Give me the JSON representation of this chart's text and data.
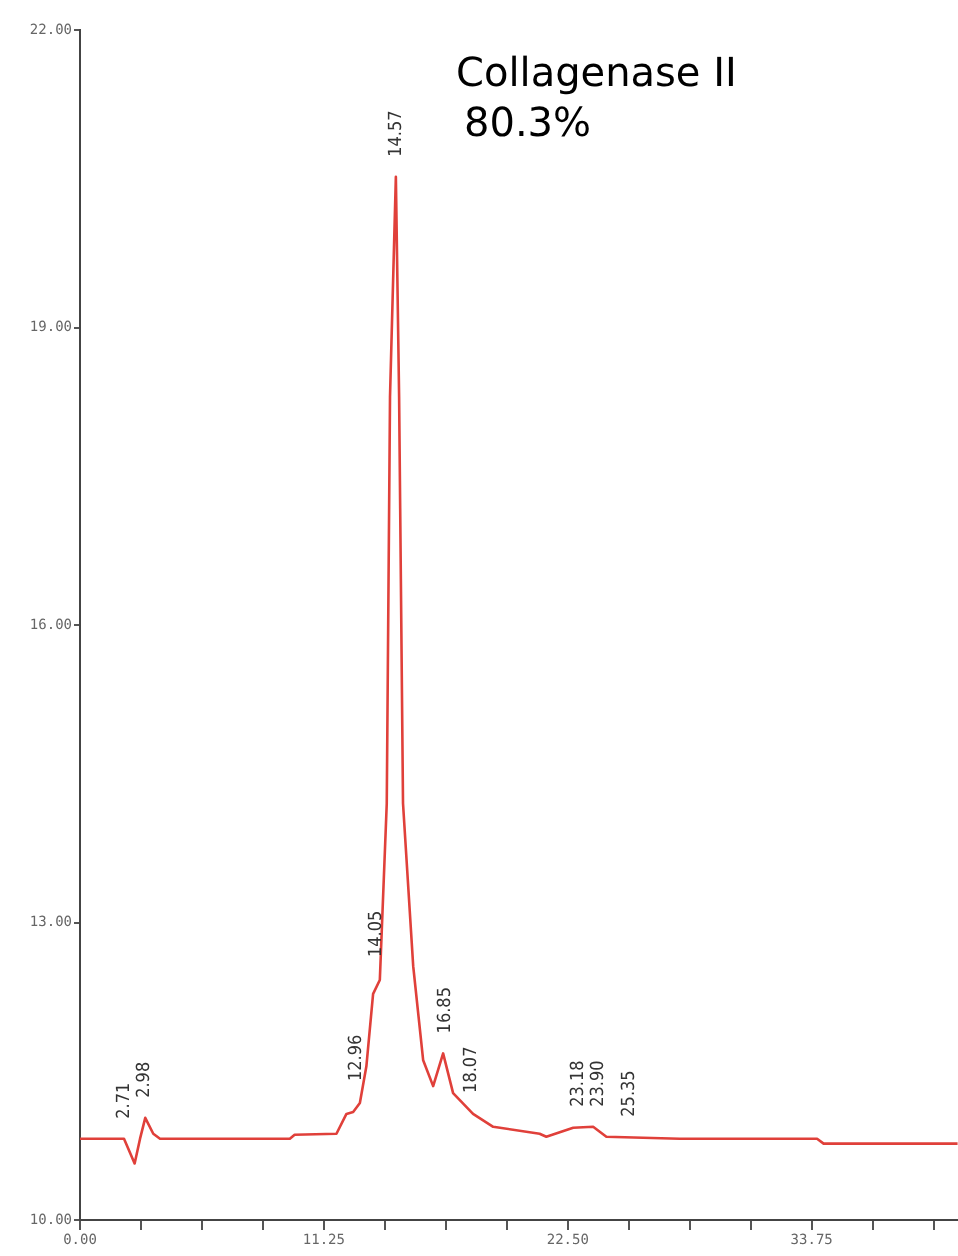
{
  "chart_data": {
    "type": "line",
    "color": "#e0403a",
    "marker": "none",
    "grid": false,
    "legend": false,
    "x": [
      0,
      2.03,
      2.52,
      2.77,
      3.01,
      3.38,
      3.69,
      9.68,
      9.9,
      11.83,
      12.29,
      12.6,
      12.91,
      13.21,
      13.52,
      13.83,
      14.15,
      14.3,
      14.57,
      14.72,
      14.9,
      15.37,
      15.83,
      16.29,
      16.75,
      17.21,
      18.13,
      19.06,
      21.2,
      21.51,
      22.75,
      23.67,
      24.28,
      27.66,
      34.0,
      34.3,
      40.48
    ],
    "values": [
      10.82,
      10.82,
      10.57,
      10.82,
      11.03,
      10.87,
      10.82,
      10.82,
      10.86,
      10.87,
      11.07,
      11.09,
      11.18,
      11.55,
      12.28,
      12.42,
      14.2,
      18.3,
      20.52,
      18.3,
      14.2,
      12.56,
      11.61,
      11.35,
      11.68,
      11.28,
      11.07,
      10.94,
      10.87,
      10.84,
      10.93,
      10.94,
      10.84,
      10.82,
      10.82,
      10.77,
      10.77
    ],
    "xlim": [
      0,
      40.5
    ],
    "xticks": [
      {
        "value": 0,
        "label": "0.00"
      },
      {
        "value": 2.81,
        "label": null
      },
      {
        "value": 5.63,
        "label": null
      },
      {
        "value": 8.44,
        "label": null
      },
      {
        "value": 11.25,
        "label": "11.25"
      },
      {
        "value": 14.06,
        "label": null
      },
      {
        "value": 16.88,
        "label": null
      },
      {
        "value": 19.69,
        "label": null
      },
      {
        "value": 22.5,
        "label": "22.50"
      },
      {
        "value": 25.31,
        "label": null
      },
      {
        "value": 28.13,
        "label": null
      },
      {
        "value": 30.94,
        "label": null
      },
      {
        "value": 33.75,
        "label": "33.75"
      },
      {
        "value": 36.56,
        "label": null
      },
      {
        "value": 39.38,
        "label": null
      }
    ],
    "ylim": [
      10,
      22
    ],
    "yticks": [
      {
        "value": 10,
        "label": "10.00"
      },
      {
        "value": 13,
        "label": "13.00"
      },
      {
        "value": 16,
        "label": "16.00"
      },
      {
        "value": 19,
        "label": "19.00"
      },
      {
        "value": 22,
        "label": "22.00"
      }
    ],
    "annotations": [
      "Collagenase II",
      "80.3%",
      {
        "text": "2.71",
        "x": 2.71,
        "y": 10.82
      },
      {
        "text": "2.98",
        "x": 2.98,
        "y": 11.03
      },
      {
        "text": "12.96",
        "x": 12.96,
        "y": 11.2
      },
      {
        "text": "14.05",
        "x": 14.05,
        "y": 12.45
      },
      {
        "text": "14.57",
        "x": 14.57,
        "y": 20.52
      },
      {
        "text": "16.85",
        "x": 16.85,
        "y": 11.68
      },
      {
        "text": "18.07",
        "x": 18.07,
        "y": 11.08
      },
      {
        "text": "23.18",
        "x": 23.18,
        "y": 10.94
      },
      {
        "text": "23.90",
        "x": 23.9,
        "y": 10.94
      },
      {
        "text": "25.35",
        "x": 25.35,
        "y": 10.84
      }
    ]
  }
}
